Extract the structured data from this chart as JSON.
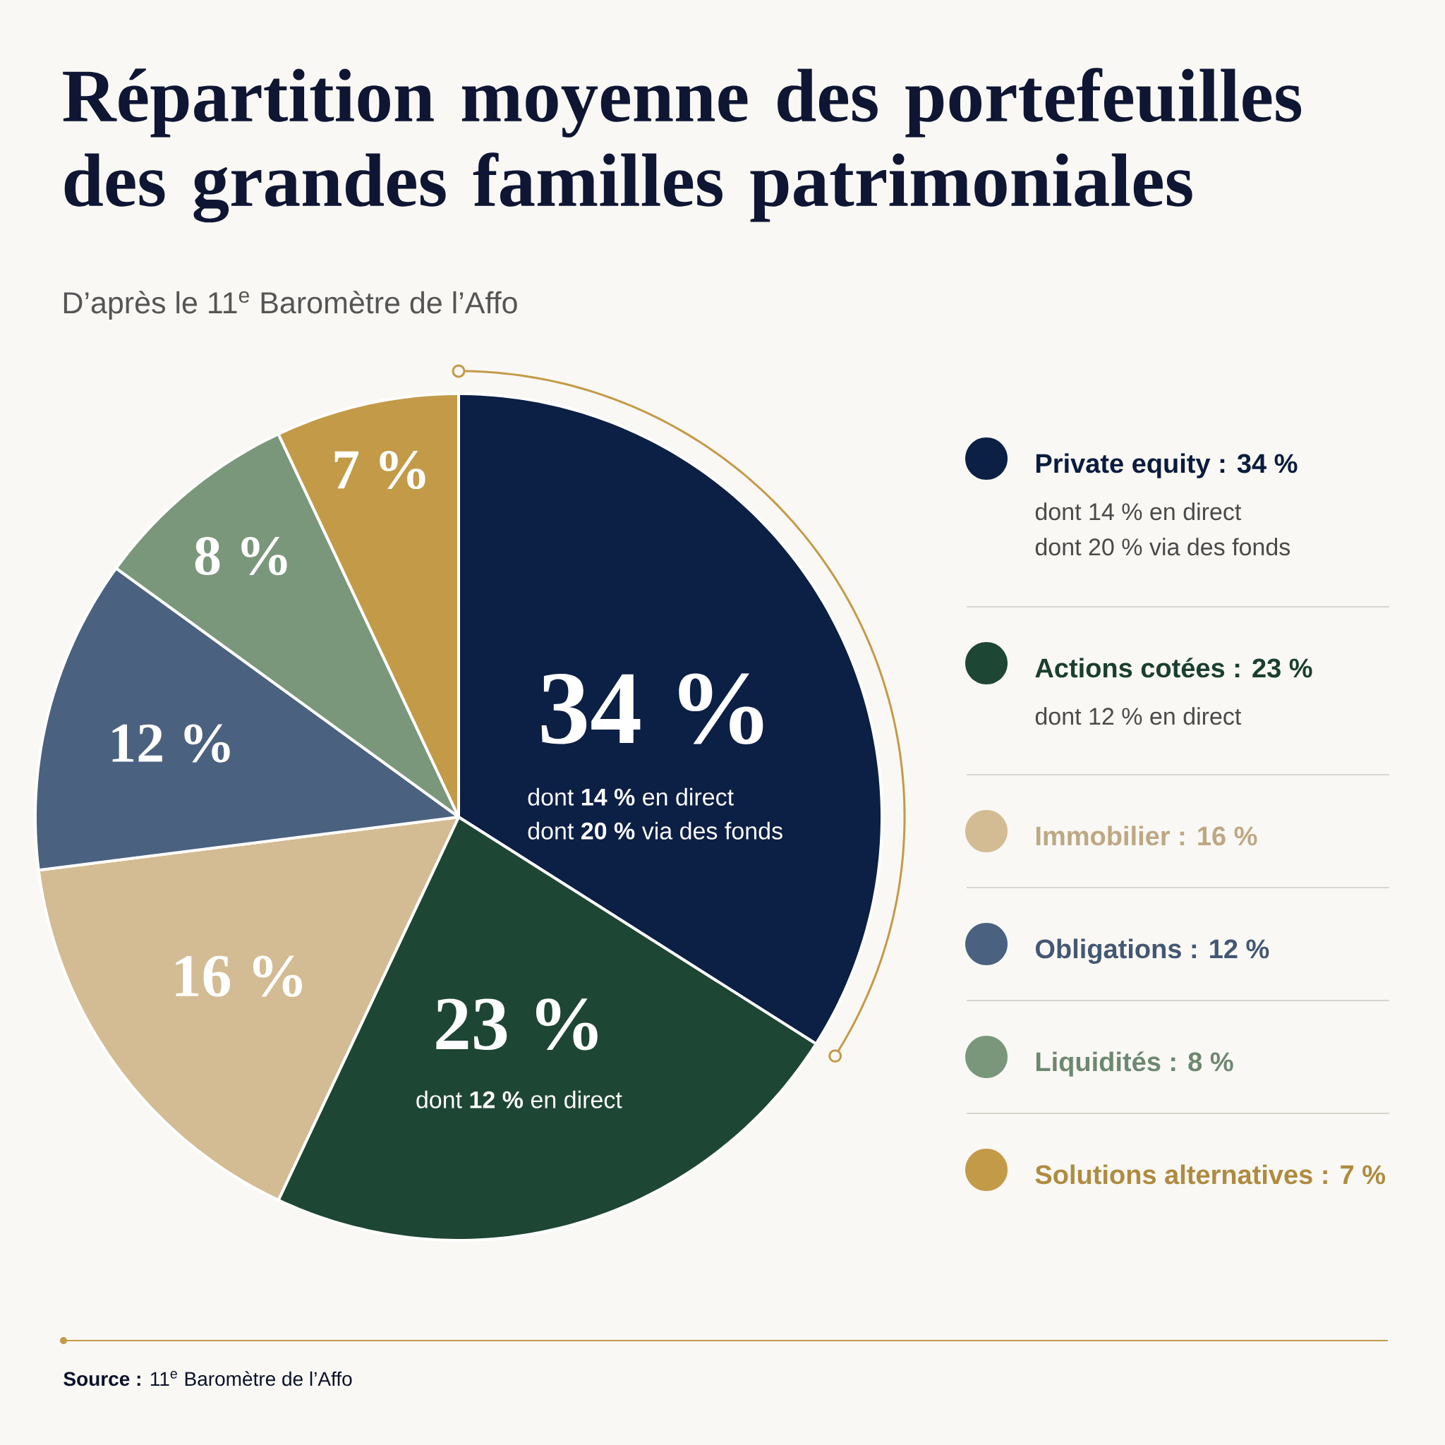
{
  "chart_data": {
    "type": "pie",
    "title": "Répartition moyenne des portefeuilles des grandes familles patrimoniales",
    "subtitle": "D’après le 11$^{e}$ Baromètre de l’Affo",
    "categories": [
      "Private equity : 34 %",
      "Actions cotées : 23 %",
      "Immobilier : 16 %",
      "Obligations : 12 %",
      "Liquidités : 8 %",
      "Solutions alternatives : 7 %"
    ],
    "values": [
      34,
      23,
      16,
      12,
      8,
      7
    ],
    "colors": [
      "#0c1f45",
      "#1e4634",
      "#d3bb93",
      "#4b6180",
      "#7a977c",
      "#c39a48"
    ],
    "value_labels": [
      "34 %",
      "23 %",
      "16 %",
      "12 %",
      "8 %",
      "7 %"
    ],
    "legend": "right",
    "annotations": [
      "dont 14 % en direct",
      "dont 20 % via des fonds",
      "dont 12 % en direct",
      "dont **14 %** en direct",
      "dont **20 %** via des fonds",
      "dont **12 %** en direct",
      "**Source :** 11$^{e}$ Baromètre de l’Affo"
    ]
  }
}
